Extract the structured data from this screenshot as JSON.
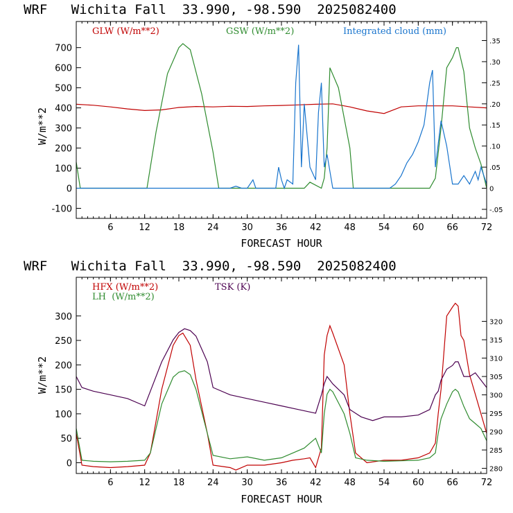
{
  "chart_data": [
    {
      "type": "line",
      "title": "WRF   Wichita Fall  33.990, -98.590  2025082400",
      "xlabel": "FORECAST HOUR",
      "ylabel": "W/m**2",
      "xlim": [
        0,
        72
      ],
      "ylim": [
        -150,
        830
      ],
      "xticks": [
        "6",
        "12",
        "18",
        "24",
        "30",
        "36",
        "42",
        "48",
        "54",
        "60",
        "66",
        "72"
      ],
      "yticks": [
        "-100",
        "0",
        "100",
        "200",
        "300",
        "400",
        "500",
        "600",
        "700"
      ],
      "y2lim": [
        -0.0714,
        0.3952
      ],
      "y2ticks": [
        "-.05",
        "0",
        ".05",
        ".10",
        ".15",
        ".20",
        ".25",
        ".30",
        ".35"
      ],
      "legend": [
        "GLW (W/m**2)",
        "GSW (W/m**2)",
        "Integrated cloud (mm)"
      ],
      "series": [
        {
          "name": "GLW (W/m**2)",
          "color": "#c00000",
          "axis": "left",
          "x": [
            0,
            3,
            6,
            9,
            12,
            15,
            18,
            21,
            24,
            27,
            30,
            33,
            36,
            39,
            42,
            45,
            48,
            51,
            54,
            57,
            60,
            63,
            66,
            69,
            72
          ],
          "y": [
            418,
            413,
            405,
            395,
            387,
            390,
            402,
            407,
            405,
            408,
            407,
            410,
            412,
            415,
            418,
            420,
            405,
            385,
            372,
            405,
            410,
            410,
            410,
            405,
            400
          ]
        },
        {
          "name": "GSW (W/m**2)",
          "color": "#2e8b2e",
          "axis": "left",
          "x": [
            0,
            0.7,
            12.4,
            14,
            16,
            18,
            18.7,
            20,
            22,
            24,
            25,
            40,
            41,
            43,
            43.5,
            44,
            44.5,
            46,
            48,
            48.6,
            61,
            62,
            63,
            64,
            65,
            66,
            66.7,
            67,
            68,
            69,
            70,
            71,
            72
          ],
          "y": [
            130,
            0,
            0,
            280,
            570,
            700,
            720,
            690,
            470,
            180,
            0,
            0,
            30,
            0,
            50,
            200,
            600,
            500,
            200,
            0,
            0,
            0,
            50,
            300,
            600,
            650,
            700,
            700,
            580,
            300,
            200,
            120,
            0
          ]
        },
        {
          "name": "Integrated cloud (mm)",
          "color": "#1874cd",
          "axis": "right",
          "x": [
            0,
            27,
            28,
            29,
            30,
            31,
            31.5,
            32,
            35,
            35.5,
            36,
            36.5,
            37,
            38,
            38.5,
            39,
            39.5,
            40,
            41,
            42,
            42.5,
            43,
            43.5,
            44,
            45,
            55,
            56,
            57,
            58,
            59,
            60,
            61,
            62,
            62.5,
            63,
            64,
            65,
            66,
            67,
            68,
            69,
            70,
            70.5,
            71,
            72
          ],
          "y": [
            0,
            0,
            0.005,
            0,
            0,
            0.02,
            0,
            0,
            0,
            0.05,
            0.02,
            0,
            0.02,
            0.01,
            0.25,
            0.34,
            0.05,
            0.2,
            0.05,
            0.02,
            0.18,
            0.25,
            0.05,
            0.08,
            0,
            0,
            0.01,
            0.03,
            0.06,
            0.08,
            0.11,
            0.15,
            0.25,
            0.28,
            0.05,
            0.16,
            0.1,
            0.01,
            0.01,
            0.03,
            0.01,
            0.04,
            0.02,
            0.05,
            0.01
          ]
        }
      ]
    },
    {
      "type": "line",
      "title": "WRF   Wichita Fall  33.990, -98.590  2025082400",
      "xlabel": "FORECAST HOUR",
      "ylabel": "W/m**2",
      "xlim": [
        0,
        72
      ],
      "ylim": [
        -22,
        379
      ],
      "xticks": [
        "6",
        "12",
        "18",
        "24",
        "30",
        "36",
        "42",
        "48",
        "54",
        "60",
        "66",
        "72"
      ],
      "yticks": [
        "0",
        "50",
        "100",
        "150",
        "200",
        "250",
        "300"
      ],
      "y2lim": [
        278.6,
        332.0
      ],
      "y2ticks": [
        "280",
        "285",
        "290",
        "295",
        "300",
        "305",
        "310",
        "315",
        "320"
      ],
      "legend": [
        "HFX (W/m**2)",
        "LH  (W/m**2)",
        "TSK (K)"
      ],
      "series": [
        {
          "name": "HFX (W/m**2)",
          "color": "#c00000",
          "axis": "left",
          "x": [
            0,
            1,
            3,
            6,
            9,
            12,
            13,
            15,
            17,
            18,
            18.7,
            20,
            21,
            23,
            24,
            27,
            28,
            30,
            33,
            36,
            38,
            40,
            41,
            42,
            43,
            43.5,
            44,
            44.5,
            45,
            47,
            48,
            49,
            51,
            54,
            57,
            60,
            62,
            63,
            63.5,
            64,
            65,
            66,
            66.5,
            67,
            67.5,
            68,
            69,
            70,
            71,
            72
          ],
          "y": [
            60,
            -5,
            -8,
            -10,
            -8,
            -5,
            20,
            150,
            240,
            260,
            265,
            240,
            170,
            60,
            -5,
            -10,
            -15,
            -5,
            -5,
            0,
            5,
            8,
            10,
            -10,
            30,
            220,
            260,
            280,
            265,
            200,
            100,
            20,
            0,
            5,
            5,
            10,
            20,
            40,
            100,
            150,
            300,
            318,
            326,
            320,
            260,
            250,
            180,
            140,
            100,
            60
          ]
        },
        {
          "name": "LH  (W/m**2)",
          "color": "#2e8b2e",
          "axis": "left",
          "x": [
            0,
            1,
            3,
            6,
            9,
            12,
            13,
            15,
            17,
            18,
            19,
            20,
            21,
            23,
            24,
            27,
            30,
            33,
            36,
            38,
            40,
            41,
            42,
            43,
            43.5,
            44,
            44.5,
            45,
            47,
            48,
            49,
            51,
            54,
            57,
            60,
            62,
            63,
            63.5,
            64,
            65,
            66,
            66.5,
            67,
            67.5,
            68,
            69,
            70,
            71,
            72
          ],
          "y": [
            70,
            5,
            3,
            2,
            3,
            5,
            20,
            120,
            175,
            185,
            188,
            180,
            150,
            60,
            15,
            8,
            12,
            5,
            10,
            20,
            30,
            40,
            50,
            20,
            100,
            140,
            150,
            145,
            100,
            60,
            10,
            5,
            3,
            4,
            5,
            10,
            20,
            60,
            90,
            120,
            145,
            150,
            145,
            130,
            115,
            90,
            80,
            70,
            45
          ]
        },
        {
          "name": "TSK (K)",
          "color": "#4b0050",
          "axis": "right",
          "x": [
            0,
            1,
            3,
            6,
            9,
            12,
            13,
            15,
            17,
            18,
            19,
            20,
            21,
            23,
            24,
            27,
            30,
            33,
            36,
            39,
            42,
            43,
            43.5,
            44,
            45,
            47,
            48,
            50,
            52,
            54,
            57,
            60,
            62,
            63,
            63.5,
            64,
            65,
            66,
            66.5,
            67,
            68,
            69,
            70,
            71,
            72
          ],
          "y": [
            305,
            302,
            301,
            300,
            299,
            297,
            301,
            309,
            315,
            317,
            318,
            317.5,
            316,
            309,
            302,
            300,
            299,
            298,
            297,
            296,
            295,
            300,
            303,
            305,
            303,
            300,
            296,
            294,
            293,
            294,
            294,
            294.5,
            296,
            300,
            301,
            304,
            307,
            308,
            309,
            309,
            305,
            305,
            306,
            304,
            302
          ]
        }
      ]
    }
  ]
}
